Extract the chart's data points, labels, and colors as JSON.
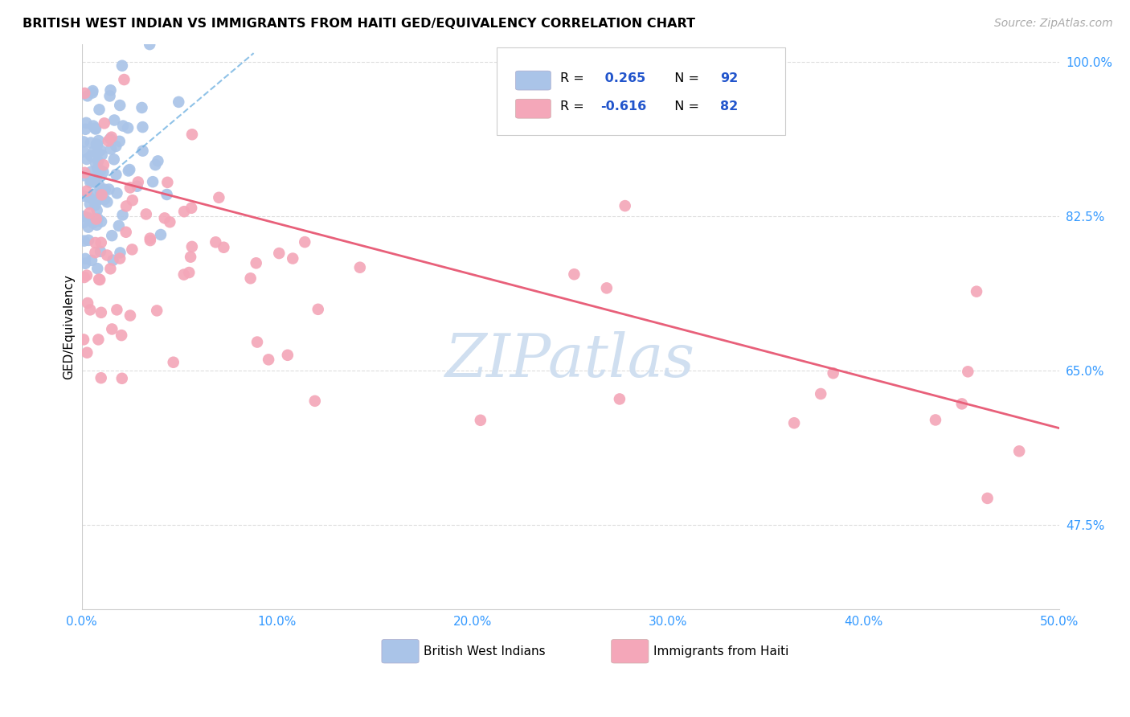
{
  "title": "BRITISH WEST INDIAN VS IMMIGRANTS FROM HAITI GED/EQUIVALENCY CORRELATION CHART",
  "source": "Source: ZipAtlas.com",
  "ylabel": "GED/Equivalency",
  "xlim": [
    0.0,
    0.5
  ],
  "ylim": [
    0.38,
    1.02
  ],
  "xtick_positions": [
    0.0,
    0.1,
    0.2,
    0.3,
    0.4,
    0.5
  ],
  "xticklabels": [
    "0.0%",
    "10.0%",
    "20.0%",
    "30.0%",
    "40.0%",
    "50.0%"
  ],
  "ytick_positions": [
    0.475,
    0.65,
    0.825,
    1.0
  ],
  "ytick_labels": [
    "47.5%",
    "65.0%",
    "82.5%",
    "100.0%"
  ],
  "blue_R": 0.265,
  "blue_N": 92,
  "pink_R": -0.616,
  "pink_N": 82,
  "blue_color": "#aac4e8",
  "pink_color": "#f4a7b9",
  "blue_line_color": "#6aaee0",
  "pink_line_color": "#e8607a",
  "watermark": "ZIPatlas",
  "watermark_color": "#d0dff0",
  "grid_color": "#dddddd",
  "tick_color": "#3399ff",
  "legend_text_color": "#000000",
  "legend_val_color": "#2255cc",
  "source_color": "#aaaaaa",
  "pink_line_x0": 0.0,
  "pink_line_x1": 0.5,
  "pink_line_y0": 0.875,
  "pink_line_y1": 0.585,
  "blue_line_x0": 0.0,
  "blue_line_x1": 0.088,
  "blue_line_y0": 0.845,
  "blue_line_y1": 1.01
}
